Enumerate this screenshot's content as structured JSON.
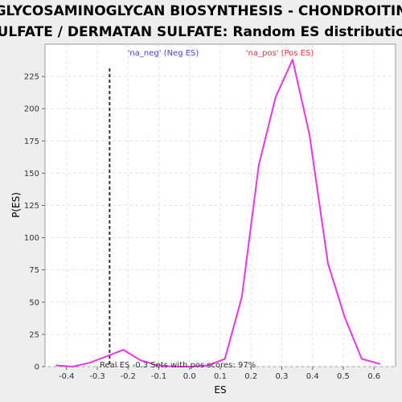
{
  "chart_data": {
    "type": "line",
    "title_line1": "GLYCOSAMINOGLYCAN BIOSYNTHESIS - CHONDROITIN",
    "title_line2": "SULFATE / DERMATAN SULFATE: Random ES distribution",
    "xlabel": "ES",
    "ylabel": "P(ES)",
    "xlim": [
      -0.47,
      0.67
    ],
    "ylim": [
      0,
      250
    ],
    "xticks": [
      -0.4,
      -0.3,
      -0.2,
      -0.1,
      0.0,
      0.1,
      0.2,
      0.3,
      0.4,
      0.5,
      0.6
    ],
    "xtick_labels": [
      "-0.4",
      "-0.3",
      "-0.2",
      "-0.1",
      "0.0",
      "0.1",
      "0.2",
      "0.3",
      "0.4",
      "0.5",
      "0.6"
    ],
    "yticks": [
      0,
      25,
      50,
      75,
      100,
      125,
      150,
      175,
      200,
      225
    ],
    "ytick_labels": [
      "0",
      "25",
      "50",
      "75",
      "100",
      "125",
      "150",
      "175",
      "200",
      "225"
    ],
    "grid": true,
    "series": [
      {
        "color": "#ee33ee",
        "x": [
          -0.435,
          -0.38,
          -0.325,
          -0.27,
          -0.215,
          -0.16,
          -0.105,
          -0.05,
          0.005,
          0.06,
          0.115,
          0.17,
          0.225,
          0.28,
          0.335,
          0.39,
          0.45,
          0.505,
          0.56,
          0.62
        ],
        "y": [
          1,
          0,
          3,
          8,
          13,
          5,
          1,
          0,
          0,
          1,
          6,
          54,
          156,
          209,
          238,
          180,
          80,
          38,
          6,
          2
        ]
      }
    ],
    "real_es": -0.26,
    "real_es_color": "#333333",
    "annotations": {
      "neg_label": "'na_neg' (Neg ES)",
      "neg_color": "#4444cc",
      "pos_label": "'na_pos' (Pos ES)",
      "pos_color": "#ee3333",
      "bottom_text": "Real ES -0.3   Sets with pos scores: 97%"
    }
  }
}
